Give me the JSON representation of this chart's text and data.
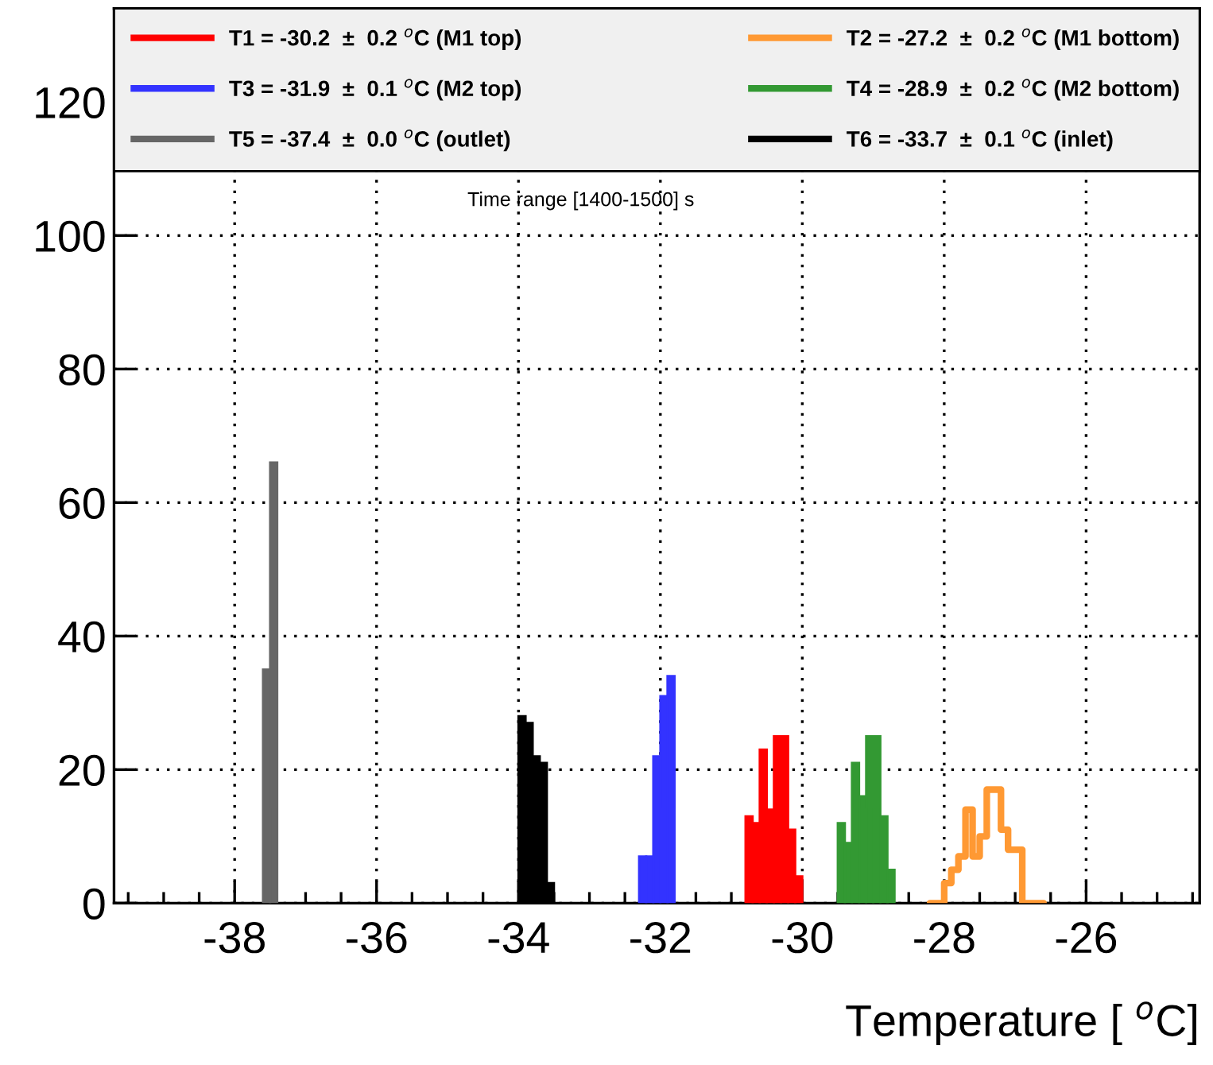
{
  "chart_data": {
    "type": "histogram",
    "xlabel": "Temperature [ $^{o}$C]",
    "xlim": [
      -39.7,
      -24.4
    ],
    "xticks": [
      -38,
      -36,
      -34,
      -32,
      -30,
      -28,
      -26
    ],
    "ylim": [
      0,
      134
    ],
    "yticks": [
      0,
      20,
      40,
      60,
      80,
      100,
      120
    ],
    "grid": true,
    "legend": "top",
    "annotations": [
      "Time range [1400-1500] s"
    ],
    "bins": [
      -37.6,
      -37.5,
      -37.4,
      -37.3,
      -37.2,
      -37.1,
      -37.0,
      -36.9,
      -36.8,
      -36.7,
      -36.6,
      -36.5,
      -36.4,
      -36.3,
      -36.2,
      -36.1,
      -36.0,
      -35.9,
      -35.8,
      -35.7,
      -35.6,
      -35.5,
      -35.4,
      -35.3,
      -35.2,
      -35.1,
      -35.0,
      -34.9,
      -34.8,
      -34.7,
      -34.6,
      -34.5,
      -34.4,
      -34.3,
      -34.2,
      -34.1,
      -34.0,
      -33.9,
      -33.8,
      -33.7,
      -33.6,
      -33.5,
      -33.4,
      -33.3,
      -33.2,
      -33.1,
      -33.0,
      -32.9,
      -32.8,
      -32.7,
      -32.6,
      -32.5,
      -32.4,
      -32.3,
      -32.2,
      -32.1,
      -32.0,
      -31.9,
      -31.8,
      -31.7,
      -31.6,
      -31.5,
      -31.4,
      -31.3,
      -31.2,
      -31.1,
      -31.0,
      -30.9,
      -30.8,
      -30.7,
      -30.6,
      -30.5,
      -30.4,
      -30.3,
      -30.2,
      -30.1,
      -30.0,
      -29.9,
      -29.8,
      -29.7,
      -29.6,
      -29.5,
      -29.4,
      -29.3,
      -29.2,
      -29.1,
      -29.0,
      -28.9,
      -28.8,
      -28.7,
      -28.6,
      -28.5,
      -28.4,
      -28.3,
      -28.2,
      -28.1,
      -28.0,
      -27.9,
      -27.8,
      -27.7,
      -27.6,
      -27.5,
      -27.4,
      -27.3,
      -27.2,
      -27.1,
      -27.0,
      -26.9,
      -26.8,
      -26.7
    ],
    "series": [
      {
        "name": "T1 = -30.2  ±  0.2 $^{o}$C (M1 top)",
        "color": "#ff0000",
        "type": "histogram",
        "values": [
          null,
          null,
          null,
          null,
          null,
          null,
          null,
          null,
          null,
          null,
          null,
          null,
          null,
          null,
          null,
          null,
          null,
          null,
          null,
          null,
          null,
          null,
          null,
          null,
          null,
          null,
          null,
          null,
          null,
          null,
          null,
          null,
          null,
          null,
          null,
          null,
          null,
          null,
          null,
          null,
          null,
          null,
          null,
          null,
          null,
          null,
          null,
          null,
          null,
          null,
          null,
          null,
          null,
          null,
          null,
          null,
          null,
          null,
          null,
          null,
          null,
          null,
          null,
          null,
          null,
          null,
          null,
          null,
          13,
          12,
          23,
          14,
          25,
          25,
          11,
          4,
          null,
          null,
          null,
          null,
          null,
          null,
          null,
          null,
          null,
          null,
          null,
          null,
          null,
          null,
          null,
          null,
          null,
          null,
          null,
          null,
          null,
          null,
          null,
          null,
          null,
          null,
          null,
          null,
          null,
          null,
          null,
          null,
          null
        ]
      },
      {
        "name": "T2 = -27.2  ±  0.2 $^{o}$C (M1 bottom)",
        "color": "#ff9933",
        "type": "step",
        "x": [
          -28.2,
          -28.1,
          -28.0,
          -27.9,
          -27.8,
          -27.7,
          -27.6,
          -27.5,
          -27.4,
          -27.3,
          -27.2,
          -27.1,
          -27.0,
          -26.9,
          -26.8,
          -26.7,
          -26.6
        ],
        "values": [
          0,
          0,
          3,
          5,
          7,
          14,
          7,
          10,
          17,
          17,
          11,
          8,
          8,
          0,
          0,
          0,
          0
        ]
      },
      {
        "name": "T3 = -31.9  ±  0.1 $^{o}$C (M2 top)",
        "color": "#3333ff",
        "type": "histogram",
        "values": [
          null,
          null,
          null,
          null,
          null,
          null,
          null,
          null,
          null,
          null,
          null,
          null,
          null,
          null,
          null,
          null,
          null,
          null,
          null,
          null,
          null,
          null,
          null,
          null,
          null,
          null,
          null,
          null,
          null,
          null,
          null,
          null,
          null,
          null,
          null,
          null,
          null,
          null,
          null,
          null,
          null,
          null,
          null,
          null,
          null,
          null,
          null,
          null,
          null,
          null,
          null,
          null,
          null,
          7,
          7,
          22,
          31,
          34,
          null,
          null,
          null,
          null,
          null,
          null,
          null,
          null,
          null,
          null,
          null,
          null,
          null,
          null,
          null,
          null,
          null,
          null,
          null,
          null,
          null,
          null,
          null,
          null,
          null,
          null,
          null,
          null,
          null,
          null,
          null,
          null,
          null,
          null,
          null,
          null,
          null,
          null,
          null,
          null,
          null,
          null,
          null,
          null,
          null,
          null,
          null,
          null,
          null,
          null,
          null
        ]
      },
      {
        "name": "T4 = -28.9  ±  0.2 $^{o}$C (M2 bottom)",
        "color": "#339933",
        "type": "histogram",
        "values": [
          null,
          null,
          null,
          null,
          null,
          null,
          null,
          null,
          null,
          null,
          null,
          null,
          null,
          null,
          null,
          null,
          null,
          null,
          null,
          null,
          null,
          null,
          null,
          null,
          null,
          null,
          null,
          null,
          null,
          null,
          null,
          null,
          null,
          null,
          null,
          null,
          null,
          null,
          null,
          null,
          null,
          null,
          null,
          null,
          null,
          null,
          null,
          null,
          null,
          null,
          null,
          null,
          null,
          null,
          null,
          null,
          null,
          null,
          null,
          null,
          null,
          null,
          null,
          null,
          null,
          null,
          null,
          null,
          null,
          null,
          null,
          null,
          null,
          null,
          null,
          null,
          null,
          null,
          null,
          null,
          null,
          12,
          9,
          21,
          16,
          25,
          25,
          13,
          5,
          null,
          null,
          null,
          null,
          null,
          null,
          null,
          null,
          null,
          null,
          null,
          null,
          null,
          null,
          null,
          null,
          null,
          null,
          null,
          null
        ]
      },
      {
        "name": "T5 = -37.4  ±  0.0 $^{o}$C (outlet)",
        "color": "#666666",
        "type": "histogram",
        "values": [
          35,
          66,
          null,
          null,
          null,
          null,
          null,
          null,
          null,
          null,
          null,
          null,
          null,
          null,
          null,
          null,
          null,
          null,
          null,
          null,
          null,
          null,
          null,
          null,
          null,
          null,
          null,
          null,
          null,
          null,
          null,
          null,
          null,
          null,
          null,
          null,
          null,
          null,
          null,
          null,
          null,
          null,
          null,
          null,
          null,
          null,
          null,
          null,
          null,
          null,
          null,
          null,
          null,
          null,
          null,
          null,
          null,
          null,
          null,
          null,
          null,
          null,
          null,
          null,
          null,
          null,
          null,
          null,
          null,
          null,
          null,
          null,
          null,
          null,
          null,
          null,
          null,
          null,
          null,
          null,
          null,
          null,
          null,
          null,
          null,
          null,
          null,
          null,
          null,
          null,
          null,
          null,
          null,
          null,
          null,
          null,
          null,
          null,
          null,
          null,
          null,
          null,
          null,
          null,
          null,
          null,
          null,
          null,
          null
        ]
      },
      {
        "name": "T6 = -33.7  ±  0.1 $^{o}$C (inlet)",
        "color": "#000000",
        "type": "histogram",
        "values": [
          null,
          null,
          null,
          null,
          null,
          null,
          null,
          null,
          null,
          null,
          null,
          null,
          null,
          null,
          null,
          null,
          null,
          null,
          null,
          null,
          null,
          null,
          null,
          null,
          null,
          null,
          null,
          null,
          null,
          null,
          null,
          null,
          null,
          null,
          null,
          null,
          28,
          27,
          22,
          21,
          3,
          null,
          null,
          null,
          null,
          null,
          null,
          null,
          null,
          null,
          null,
          null,
          null,
          null,
          null,
          null,
          null,
          null,
          null,
          null,
          null,
          null,
          null,
          null,
          null,
          null,
          null,
          null,
          null,
          null,
          null,
          null,
          null,
          null,
          null,
          null,
          null,
          null,
          null,
          null,
          null,
          null,
          null,
          null,
          null,
          null,
          null,
          null,
          null,
          null,
          null,
          null,
          null,
          null,
          null,
          null,
          null,
          null,
          null,
          null,
          null,
          null,
          null,
          null,
          null,
          null,
          null,
          null,
          null
        ]
      }
    ]
  }
}
